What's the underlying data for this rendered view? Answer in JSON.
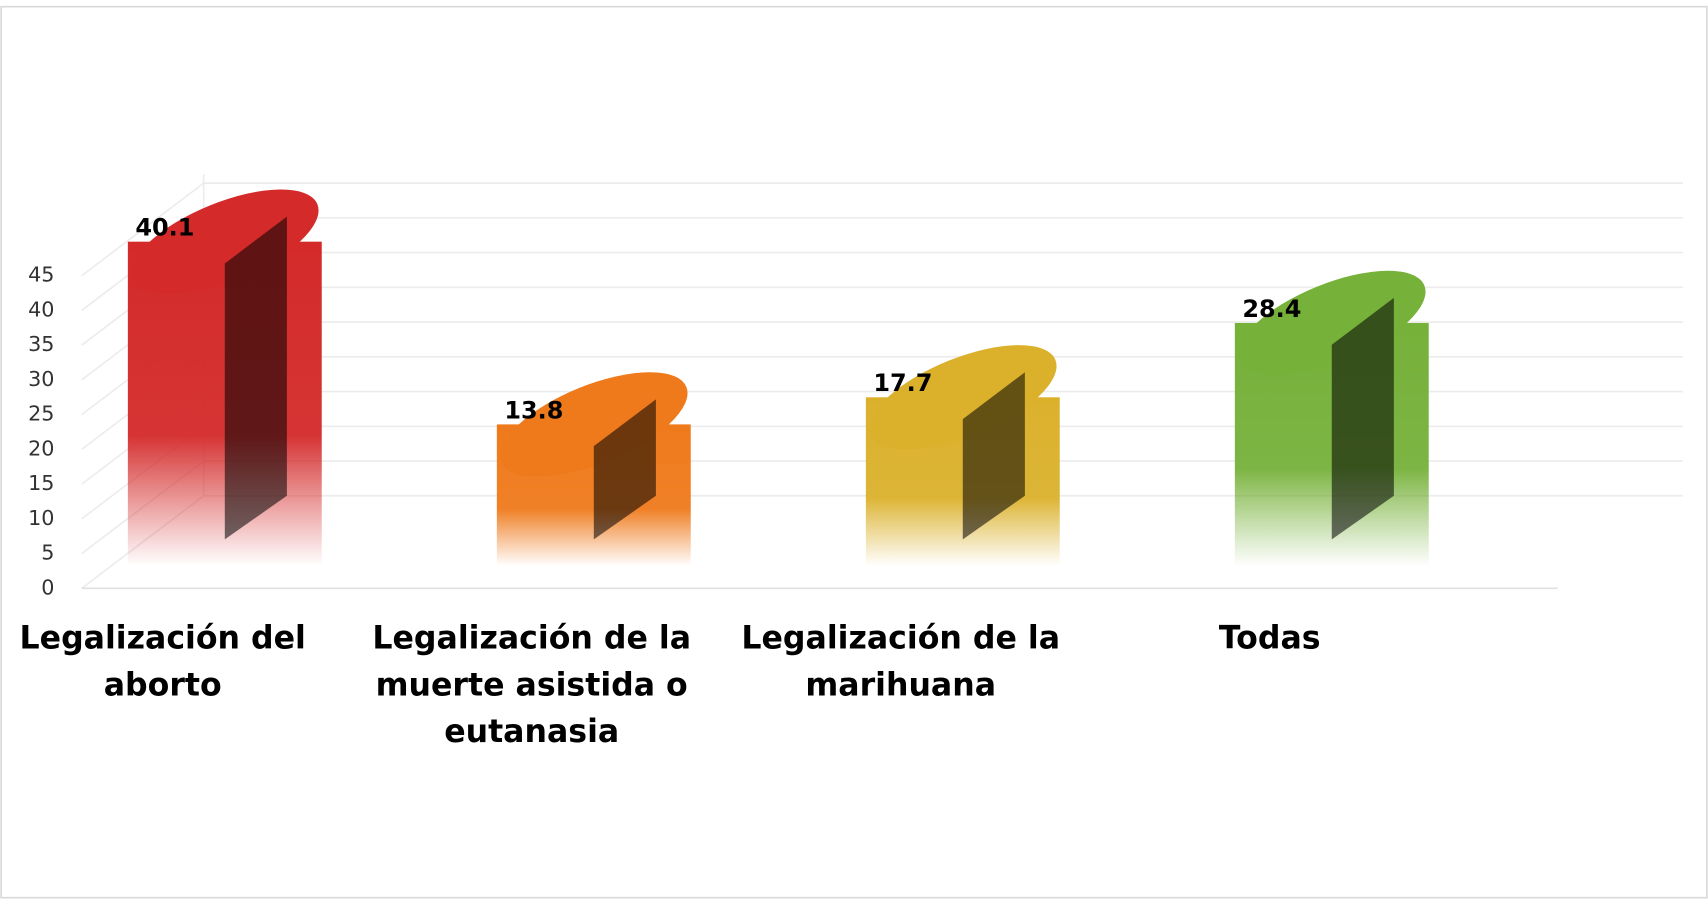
{
  "chart_data": {
    "type": "bar",
    "categories": [
      "Legalización del aborto",
      "Legalización de la muerte asistida o eutanasia",
      "Legalización de la marihuana",
      "Todas"
    ],
    "series": [
      {
        "name": null,
        "colors": [
          "#d42a2a",
          "#ef7a1c",
          "#dbb12c",
          "#76b13a"
        ],
        "values": [
          40.1,
          13.8,
          17.7,
          28.4
        ]
      }
    ],
    "ylim": [
      0,
      45
    ],
    "yticks": [
      0,
      5,
      10,
      15,
      20,
      25,
      30,
      35,
      40,
      45
    ],
    "grid": true
  }
}
